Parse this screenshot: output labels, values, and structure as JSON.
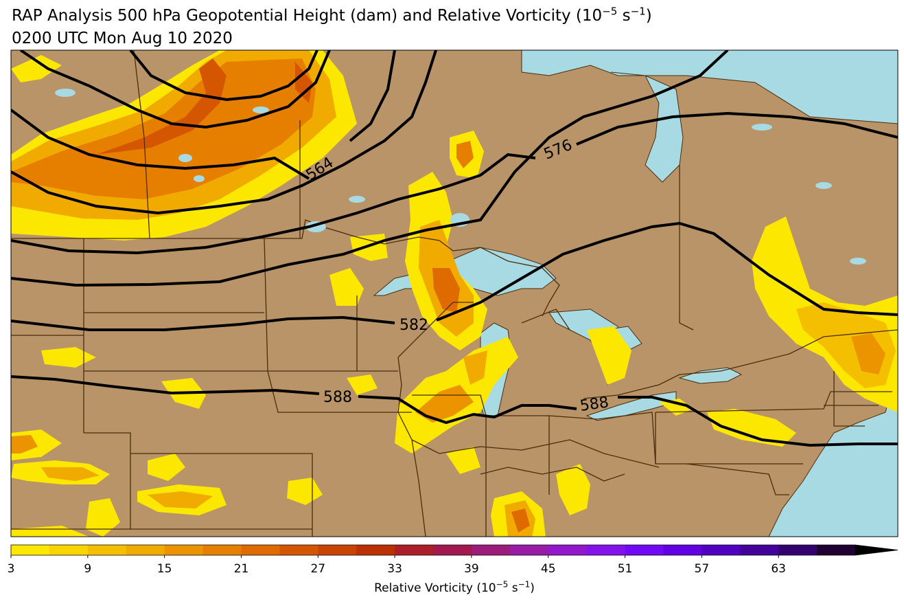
{
  "header": {
    "title_prefix": "RAP Analysis 500 hPa Geopotential Height (dam) and Relative Vorticity (10",
    "title_exp": "−5",
    "title_mid": " s",
    "title_exp2": "−1",
    "title_suffix": ")",
    "subtitle": "0200 UTC Mon Aug 10 2020"
  },
  "map": {
    "land_color": "#b89468",
    "water_color": "#a8dae4",
    "border_color": "#4a2c0a",
    "contour_color": "#000000",
    "contour_labels": [
      "564",
      "576",
      "582",
      "588",
      "588"
    ]
  },
  "colorbar": {
    "ticks": [
      "3",
      "9",
      "15",
      "21",
      "27",
      "33",
      "39",
      "45",
      "51",
      "57",
      "63"
    ],
    "label_prefix": "Relative Vorticity (10",
    "label_exp": "−5",
    "label_mid": " s",
    "label_exp2": "−1",
    "label_suffix": ")",
    "colors": [
      "#fbe700",
      "#f8d400",
      "#f4bf00",
      "#f0aa00",
      "#eb9400",
      "#e67f00",
      "#df6a00",
      "#d55600",
      "#c94300",
      "#bb3000",
      "#ad1f28",
      "#a3184e",
      "#9c1c79",
      "#9a1ba6",
      "#9318cc",
      "#8412ea",
      "#7209f5",
      "#6100e3",
      "#5100c2",
      "#43009a",
      "#33006f",
      "#200030"
    ],
    "extend_color": "#000000"
  }
}
